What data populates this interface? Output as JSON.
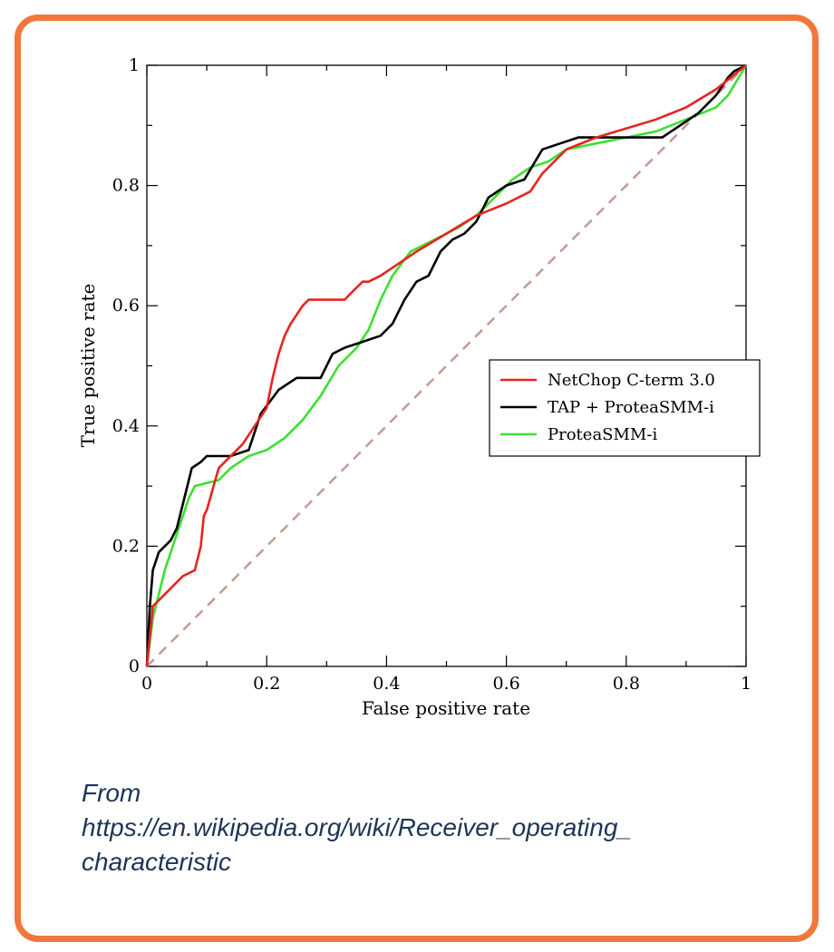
{
  "chart_data": {
    "type": "line",
    "xlabel": "False positive rate",
    "ylabel": "True positive rate",
    "xlim": [
      0,
      1
    ],
    "ylim": [
      0,
      1
    ],
    "xticks": [
      "0",
      "0.2",
      "0.4",
      "0.6",
      "0.8",
      "1"
    ],
    "yticks": [
      "0",
      "0.2",
      "0.4",
      "0.6",
      "0.8",
      "1"
    ],
    "grid": false,
    "legend_position": "right-middle",
    "reference_line": {
      "x": [
        0,
        1
      ],
      "y": [
        0,
        1
      ],
      "style": "dashed",
      "color": "#c49a94"
    },
    "series": [
      {
        "name": "NetChop C-term 3.0",
        "color": "#e8231f",
        "x": [
          0,
          0.01,
          0.03,
          0.06,
          0.08,
          0.09,
          0.095,
          0.1,
          0.12,
          0.13,
          0.16,
          0.18,
          0.2,
          0.21,
          0.22,
          0.23,
          0.24,
          0.26,
          0.27,
          0.33,
          0.34,
          0.36,
          0.37,
          0.39,
          0.42,
          0.45,
          0.5,
          0.55,
          0.6,
          0.64,
          0.66,
          0.7,
          0.75,
          0.85,
          0.9,
          0.95,
          1
        ],
        "y": [
          0,
          0.1,
          0.12,
          0.15,
          0.16,
          0.2,
          0.25,
          0.26,
          0.33,
          0.34,
          0.37,
          0.4,
          0.43,
          0.48,
          0.52,
          0.55,
          0.57,
          0.6,
          0.61,
          0.61,
          0.62,
          0.64,
          0.64,
          0.65,
          0.67,
          0.69,
          0.72,
          0.75,
          0.77,
          0.79,
          0.82,
          0.86,
          0.88,
          0.91,
          0.93,
          0.96,
          1
        ]
      },
      {
        "name": "TAP + ProteaSMM-i",
        "color": "#000000",
        "x": [
          0,
          0.005,
          0.01,
          0.02,
          0.03,
          0.04,
          0.05,
          0.06,
          0.07,
          0.075,
          0.09,
          0.1,
          0.14,
          0.17,
          0.19,
          0.22,
          0.25,
          0.29,
          0.31,
          0.33,
          0.36,
          0.39,
          0.41,
          0.43,
          0.45,
          0.47,
          0.49,
          0.51,
          0.53,
          0.55,
          0.57,
          0.6,
          0.63,
          0.66,
          0.69,
          0.72,
          0.86,
          0.92,
          0.95,
          0.97,
          0.98,
          1
        ],
        "y": [
          0,
          0.1,
          0.16,
          0.19,
          0.2,
          0.21,
          0.23,
          0.27,
          0.31,
          0.33,
          0.34,
          0.35,
          0.35,
          0.36,
          0.42,
          0.46,
          0.48,
          0.48,
          0.52,
          0.53,
          0.54,
          0.55,
          0.57,
          0.61,
          0.64,
          0.65,
          0.69,
          0.71,
          0.72,
          0.74,
          0.78,
          0.8,
          0.81,
          0.86,
          0.87,
          0.88,
          0.88,
          0.92,
          0.95,
          0.98,
          0.99,
          1
        ]
      },
      {
        "name": "ProteaSMM-i",
        "color": "#3be02f",
        "x": [
          0,
          0.01,
          0.02,
          0.03,
          0.05,
          0.06,
          0.07,
          0.08,
          0.12,
          0.14,
          0.17,
          0.2,
          0.23,
          0.26,
          0.29,
          0.32,
          0.35,
          0.37,
          0.39,
          0.41,
          0.44,
          0.48,
          0.52,
          0.55,
          0.58,
          0.61,
          0.64,
          0.67,
          0.7,
          0.75,
          0.8,
          0.85,
          0.9,
          0.95,
          0.97,
          1
        ],
        "y": [
          0,
          0.08,
          0.12,
          0.16,
          0.22,
          0.25,
          0.28,
          0.3,
          0.31,
          0.33,
          0.35,
          0.36,
          0.38,
          0.41,
          0.45,
          0.5,
          0.53,
          0.56,
          0.61,
          0.65,
          0.69,
          0.71,
          0.73,
          0.75,
          0.78,
          0.81,
          0.83,
          0.84,
          0.86,
          0.87,
          0.88,
          0.89,
          0.91,
          0.93,
          0.95,
          1
        ]
      }
    ]
  },
  "caption": {
    "line1": "From",
    "line2": "https://en.wikipedia.org/wiki/Receiver_operating_",
    "line3": "characteristic"
  }
}
